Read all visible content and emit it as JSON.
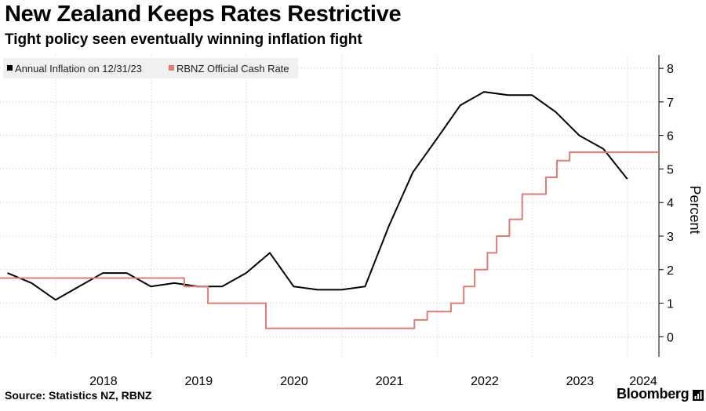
{
  "header": {
    "title": "New Zealand Keeps Rates Restrictive",
    "subtitle": "Tight policy seen eventually winning inflation fight"
  },
  "footer": {
    "source": "Source: Statistics NZ, RBNZ",
    "brand": "Bloomberg"
  },
  "icons": {
    "brand": "bar-chart-icon"
  },
  "colors": {
    "inflation": "#000000",
    "cash_rate": "#e07b74",
    "grid": "#c9c9c9",
    "legend_bg": "#f0f0f0"
  },
  "chart_data": {
    "type": "line",
    "title": "New Zealand Keeps Rates Restrictive",
    "subtitle": "Tight policy seen eventually winning inflation fight",
    "ylabel": "Percent",
    "ylim": [
      -0.6,
      8.4
    ],
    "xlim": [
      "2017-06-01",
      "2024-04-30"
    ],
    "y_ticks": [
      0,
      1,
      2,
      3,
      4,
      5,
      6,
      7,
      8
    ],
    "x_tick_labels": [
      "2018",
      "2019",
      "2020",
      "2021",
      "2022",
      "2023",
      "2024"
    ],
    "y_axis_position": "right",
    "grid": "vertical dotted at year boundaries, horizontal dotted at y-ticks",
    "legend": {
      "position": "top-left",
      "background": "light gray"
    },
    "series": [
      {
        "name": "Annual Inflation on 12/31/23",
        "color": "#000000",
        "x": [
          "2017-06-30",
          "2017-09-30",
          "2017-12-31",
          "2018-03-31",
          "2018-06-30",
          "2018-09-30",
          "2018-12-31",
          "2019-03-31",
          "2019-06-30",
          "2019-09-30",
          "2019-12-31",
          "2020-03-31",
          "2020-06-30",
          "2020-09-30",
          "2020-12-31",
          "2021-03-31",
          "2021-06-30",
          "2021-09-30",
          "2021-12-31",
          "2022-03-31",
          "2022-06-30",
          "2022-09-30",
          "2022-12-31",
          "2023-03-31",
          "2023-06-30",
          "2023-09-30",
          "2023-12-31"
        ],
        "values": [
          1.9,
          1.6,
          1.1,
          1.5,
          1.9,
          1.9,
          1.5,
          1.6,
          1.5,
          1.5,
          1.9,
          2.5,
          1.5,
          1.4,
          1.4,
          1.5,
          3.3,
          4.9,
          5.9,
          6.9,
          7.3,
          7.2,
          7.2,
          6.7,
          6.0,
          5.6,
          4.7
        ]
      },
      {
        "name": "RBNZ Official Cash Rate",
        "color": "#e07b74",
        "step": true,
        "x": [
          "2017-06-01",
          "2019-05-08",
          "2019-08-07",
          "2020-03-16",
          "2021-10-06",
          "2021-11-24",
          "2022-02-23",
          "2022-04-13",
          "2022-05-25",
          "2022-07-13",
          "2022-08-17",
          "2022-10-05",
          "2022-11-23",
          "2023-02-22",
          "2023-04-05",
          "2023-05-24",
          "2024-04-30"
        ],
        "values": [
          1.75,
          1.5,
          1.0,
          0.25,
          0.5,
          0.75,
          1.0,
          1.5,
          2.0,
          2.5,
          3.0,
          3.5,
          4.25,
          4.75,
          5.25,
          5.5,
          5.5
        ]
      }
    ]
  }
}
